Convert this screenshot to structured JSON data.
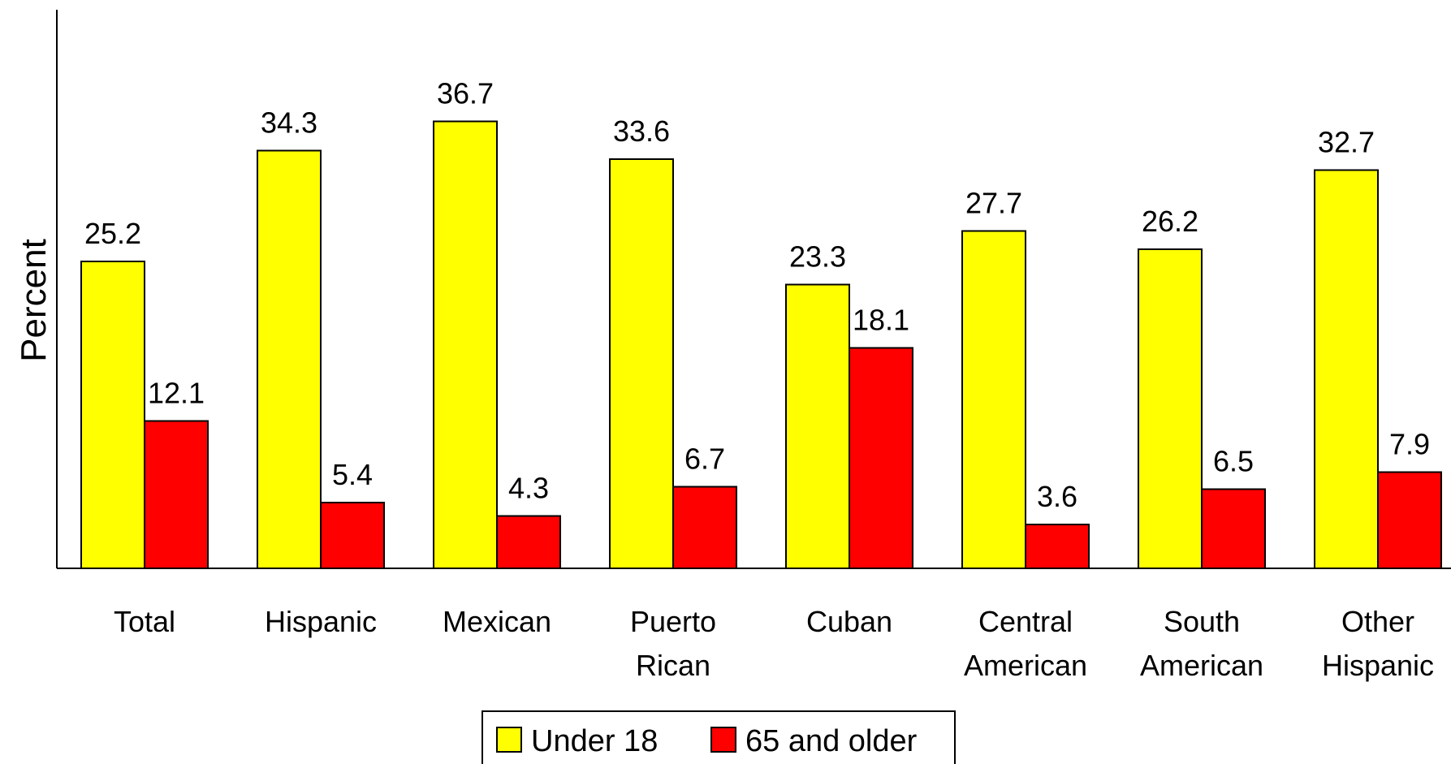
{
  "chart_data": {
    "type": "bar",
    "title": "",
    "xlabel": "",
    "ylabel": "Percent",
    "ylim": [
      0,
      45
    ],
    "grid": false,
    "legend_placement": "bottom-center",
    "categories": [
      [
        "Total"
      ],
      [
        "Hispanic"
      ],
      [
        "Mexican"
      ],
      [
        "Puerto",
        "Rican"
      ],
      [
        "Cuban"
      ],
      [
        "Central",
        "American"
      ],
      [
        "South",
        "American"
      ],
      [
        "Other",
        "Hispanic"
      ]
    ],
    "series": [
      {
        "name": "Under 18",
        "color": "#ffff00",
        "values": [
          25.2,
          34.3,
          36.7,
          33.6,
          23.3,
          27.7,
          26.2,
          32.7
        ],
        "labels": [
          "25.2",
          "34.3",
          "36.7",
          "33.6",
          "23.3",
          "27.7",
          "26.2",
          "32.7"
        ]
      },
      {
        "name": "65 and older",
        "color": "#ff0000",
        "values": [
          12.1,
          5.4,
          4.3,
          6.7,
          18.1,
          3.6,
          6.5,
          7.9
        ],
        "labels": [
          "12.1",
          "5.4",
          "4.3",
          "6.7",
          "18.1",
          "3.6",
          "6.5",
          "7.9"
        ]
      }
    ]
  }
}
